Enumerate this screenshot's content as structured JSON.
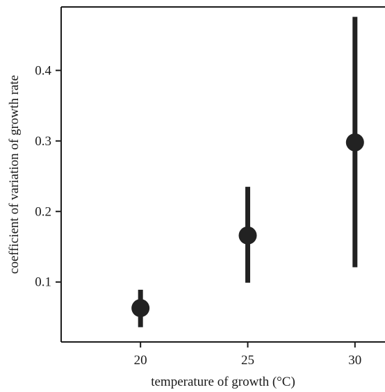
{
  "chart_data": {
    "type": "scatter",
    "title": "",
    "xlabel": "temperature of growth (°C)",
    "ylabel": "coefficient of variation of growth rate",
    "x_ticks": [
      "20",
      "25",
      "30"
    ],
    "y_ticks": [
      "0.1",
      "0.2",
      "0.3",
      "0.4"
    ],
    "xlim": [
      16.3,
      31.4
    ],
    "ylim": [
      0.015,
      0.49
    ],
    "grid": false,
    "legend": "none",
    "marker_color": "#222222",
    "points": [
      {
        "x": 20,
        "y": 0.063,
        "lower": 0.036,
        "upper": 0.089
      },
      {
        "x": 25,
        "y": 0.166,
        "lower": 0.099,
        "upper": 0.235
      },
      {
        "x": 30,
        "y": 0.298,
        "lower": 0.121,
        "upper": 0.476
      }
    ]
  }
}
